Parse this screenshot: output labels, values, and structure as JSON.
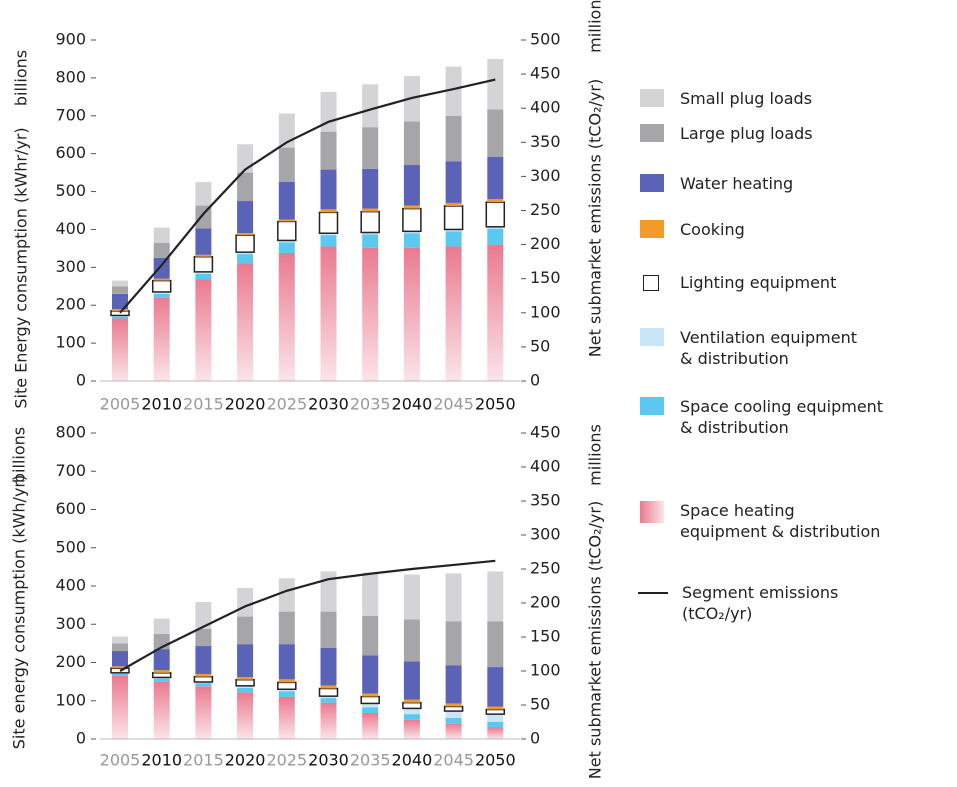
{
  "chart_data": [
    {
      "type": "bar",
      "y_label": "Site Energy consumption (kWhr/yr)",
      "y_unit": "billions",
      "y2_label": "Net submarket emissions (tCO₂/yr)",
      "y2_unit": "millions",
      "categories": [
        "2005",
        "2010",
        "2015",
        "2020",
        "2025",
        "2030",
        "2035",
        "2040",
        "2045",
        "2050"
      ],
      "category_colors": [
        "#999999",
        "#111111",
        "#999999",
        "#111111",
        "#999999",
        "#111111",
        "#999999",
        "#111111",
        "#999999",
        "#111111"
      ],
      "ylim": [
        0,
        900
      ],
      "yticks": [
        0,
        100,
        200,
        300,
        400,
        500,
        600,
        700,
        800,
        900
      ],
      "y2lim": [
        0,
        500
      ],
      "y2ticks": [
        0,
        50,
        100,
        150,
        200,
        250,
        300,
        350,
        400,
        450,
        500
      ],
      "series": [
        {
          "name": "Space heating equipment & distribution",
          "color": "#ea7a8f",
          "gradient": true,
          "values": [
            165,
            220,
            268,
            310,
            338,
            355,
            352,
            352,
            355,
            360
          ]
        },
        {
          "name": "Space cooling equipment & distribution",
          "color": "#5bc8ef",
          "values": [
            5,
            10,
            15,
            25,
            28,
            30,
            35,
            38,
            40,
            42
          ]
        },
        {
          "name": "Ventilation equipment & distribution",
          "color": "#c8e6f8",
          "values": [
            3,
            5,
            5,
            5,
            5,
            5,
            5,
            5,
            5,
            5
          ]
        },
        {
          "name": "Lighting equipment",
          "color": "#ffffff",
          "stroke": "#222222",
          "values": [
            12,
            30,
            40,
            45,
            50,
            55,
            55,
            60,
            62,
            65
          ]
        },
        {
          "name": "Cooking",
          "color": "#f39a2b",
          "values": [
            5,
            5,
            5,
            5,
            5,
            8,
            8,
            8,
            8,
            8
          ]
        },
        {
          "name": "Water heating",
          "color": "#5b63b6",
          "values": [
            40,
            55,
            70,
            85,
            100,
            105,
            105,
            107,
            110,
            112
          ]
        },
        {
          "name": "Large plug loads",
          "color": "#a6a6aa",
          "values": [
            20,
            40,
            60,
            75,
            90,
            100,
            110,
            115,
            120,
            125
          ]
        },
        {
          "name": "Small plug loads",
          "color": "#d4d4d6",
          "values": [
            15,
            40,
            62,
            75,
            90,
            105,
            113,
            120,
            130,
            133
          ]
        },
        {
          "name": "Segment emissions (tCO₂/yr)",
          "color": "#222222",
          "type": "line",
          "axis": "y2",
          "values": [
            100,
            170,
            245,
            310,
            350,
            380,
            398,
            415,
            428,
            442
          ]
        }
      ]
    },
    {
      "type": "bar",
      "y_label": "Site energy consumption (kWh/yr)",
      "y_unit": "billions",
      "y2_label": "Net submarket emissions (tCO₂/yr)",
      "y2_unit": "millions",
      "categories": [
        "2005",
        "2010",
        "2015",
        "2020",
        "2025",
        "2030",
        "2035",
        "2040",
        "2045",
        "2050"
      ],
      "category_colors": [
        "#999999",
        "#111111",
        "#999999",
        "#111111",
        "#999999",
        "#111111",
        "#999999",
        "#111111",
        "#999999",
        "#111111"
      ],
      "ylim": [
        0,
        800
      ],
      "yticks": [
        0,
        100,
        200,
        300,
        400,
        500,
        600,
        700,
        800
      ],
      "y2lim": [
        0,
        450
      ],
      "y2ticks": [
        0,
        50,
        100,
        150,
        200,
        250,
        300,
        350,
        400,
        450
      ],
      "series": [
        {
          "values": [
            165,
            150,
            138,
            122,
            110,
            95,
            68,
            50,
            40,
            30
          ]
        },
        {
          "values": [
            5,
            8,
            8,
            12,
            15,
            12,
            15,
            15,
            15,
            15
          ]
        },
        {
          "values": [
            3,
            3,
            3,
            5,
            5,
            5,
            10,
            15,
            18,
            20
          ]
        },
        {
          "values": [
            12,
            12,
            14,
            16,
            18,
            20,
            18,
            15,
            12,
            12
          ]
        },
        {
          "values": [
            5,
            7,
            7,
            7,
            8,
            8,
            8,
            8,
            8,
            8
          ]
        },
        {
          "values": [
            40,
            55,
            73,
            86,
            92,
            98,
            100,
            100,
            100,
            103
          ]
        },
        {
          "values": [
            20,
            40,
            45,
            72,
            85,
            95,
            103,
            110,
            115,
            120
          ]
        },
        {
          "values": [
            18,
            40,
            70,
            75,
            87,
            105,
            113,
            117,
            125,
            130
          ]
        },
        {
          "type": "line",
          "axis": "y2",
          "values": [
            100,
            135,
            165,
            195,
            218,
            235,
            243,
            250,
            256,
            262
          ]
        }
      ]
    }
  ]
}
